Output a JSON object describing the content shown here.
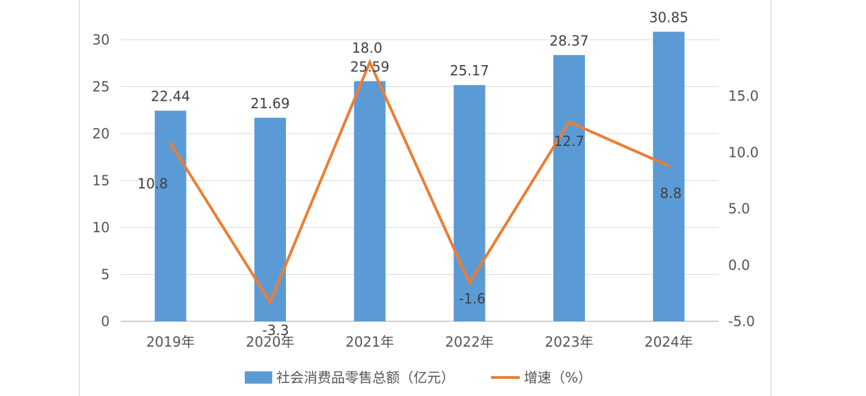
{
  "chart_data": {
    "type": "bar",
    "categories": [
      "2019年",
      "2020年",
      "2021年",
      "2022年",
      "2023年",
      "2024年"
    ],
    "series": [
      {
        "name": "社会消费品零售总额（亿元）",
        "type": "bar",
        "axis": "left",
        "color": "#5B9BD5",
        "values": [
          22.44,
          21.69,
          25.59,
          25.17,
          28.37,
          30.85
        ],
        "labels": [
          "22.44",
          "21.69",
          "25.59",
          "25.17",
          "28.37",
          "30.85"
        ]
      },
      {
        "name": "增速（%）",
        "type": "line",
        "axis": "right",
        "color": "#ED7D31",
        "values": [
          10.8,
          -3.3,
          18.0,
          -1.6,
          12.7,
          8.8
        ],
        "labels": [
          "10.8",
          "-3.3",
          "18.0",
          "-1.6",
          "12.7",
          "8.8"
        ]
      }
    ],
    "y_left": {
      "ylim": [
        0,
        30
      ],
      "ticks": [
        "0",
        "5",
        "10",
        "15",
        "20",
        "25",
        "30"
      ]
    },
    "y_right": {
      "ylim": [
        -5,
        20
      ],
      "ticks": [
        "-5.0",
        "0.0",
        "5.0",
        "10.0",
        "15.0"
      ]
    },
    "grid": true,
    "legend": "bottom"
  }
}
